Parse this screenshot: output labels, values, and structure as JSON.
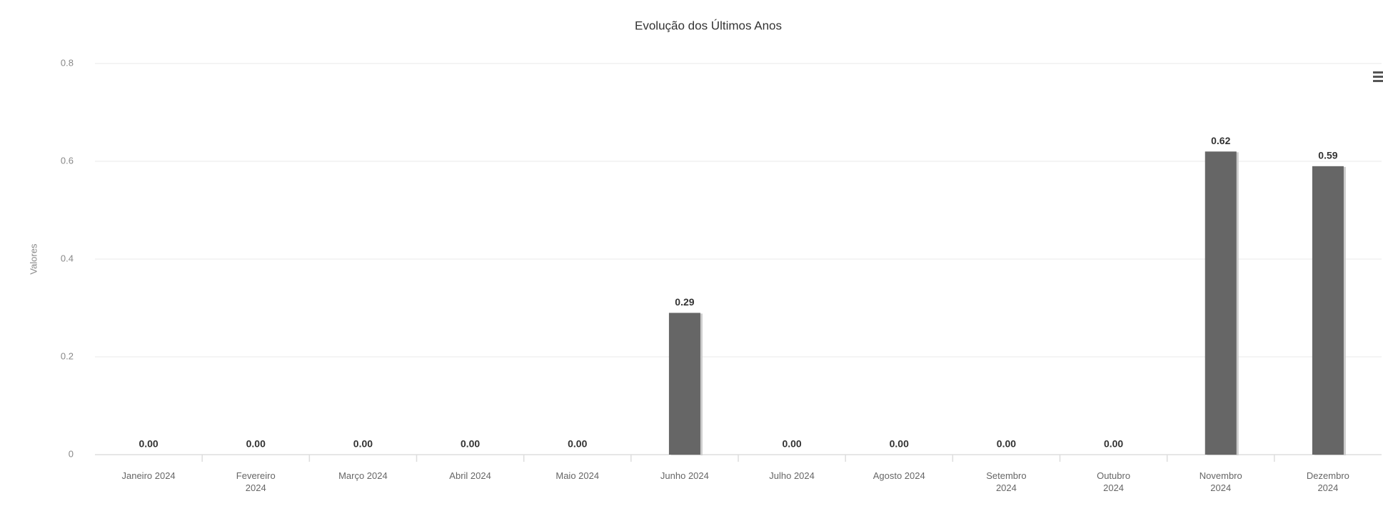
{
  "chart_data": {
    "type": "bar",
    "title": "Evolução dos Últimos Anos",
    "y_label": "Valores",
    "categories": [
      "Janeiro 2024",
      "Fevereiro 2024",
      "Março 2024",
      "Abril 2024",
      "Maio 2024",
      "Junho 2024",
      "Julho 2024",
      "Agosto 2024",
      "Setembro 2024",
      "Outubro 2024",
      "Novembro 2024",
      "Dezembro 2024"
    ],
    "values": [
      0,
      0,
      0,
      0,
      0,
      0.29,
      0,
      0,
      0,
      0,
      0.62,
      0.59
    ],
    "value_labels": [
      "0.00",
      "0.00",
      "0.00",
      "0.00",
      "0.00",
      "0.29",
      "0.00",
      "0.00",
      "0.00",
      "0.00",
      "0.62",
      "0.59"
    ],
    "color": "#666666",
    "ylim": [
      0,
      0.8
    ],
    "yticks": [
      0,
      0.2,
      0.4,
      0.6,
      0.8
    ],
    "grid": true
  }
}
